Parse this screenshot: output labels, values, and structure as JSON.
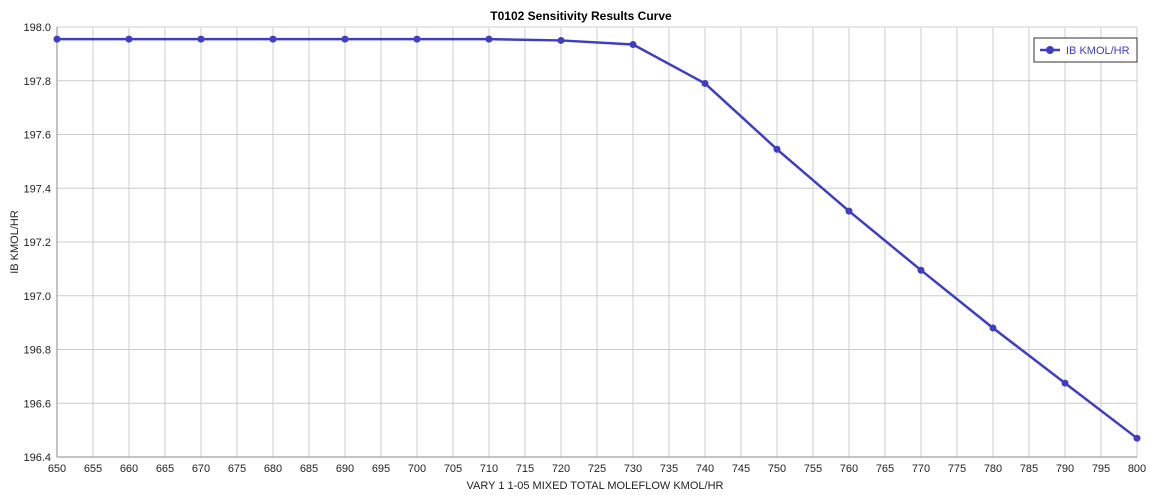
{
  "colors": {
    "series": "#3e3ec3",
    "grid": "#cccccc",
    "axis": "#888888",
    "background": "#ffffff",
    "legend_border": "#333333"
  },
  "chart_data": {
    "type": "line",
    "title": "T0102 Sensitivity Results Curve",
    "xlabel": "VARY  1 1-05 MIXED TOTAL MOLEFLOW KMOL/HR",
    "ylabel": "IB KMOL/HR",
    "xlim": [
      650,
      800
    ],
    "ylim": [
      196.4,
      198.0
    ],
    "x_ticks": [
      650,
      655,
      660,
      665,
      670,
      675,
      680,
      685,
      690,
      695,
      700,
      705,
      710,
      715,
      720,
      725,
      730,
      735,
      740,
      745,
      750,
      755,
      760,
      765,
      770,
      775,
      780,
      785,
      790,
      795,
      800
    ],
    "y_ticks": [
      196.4,
      196.6,
      196.8,
      197.0,
      197.2,
      197.4,
      197.6,
      197.8,
      198.0
    ],
    "y_tick_labels": [
      "196.4",
      "196.6",
      "196.8",
      "197.0",
      "197.2",
      "197.4",
      "197.6",
      "197.8",
      "198.0"
    ],
    "grid": true,
    "legend_position": "top-right",
    "series": [
      {
        "name": "IB KMOL/HR",
        "x": [
          650,
          660,
          670,
          680,
          690,
          700,
          710,
          720,
          730,
          740,
          750,
          760,
          770,
          780,
          790,
          800
        ],
        "values": [
          197.955,
          197.955,
          197.955,
          197.955,
          197.955,
          197.955,
          197.955,
          197.95,
          197.935,
          197.79,
          197.545,
          197.315,
          197.095,
          196.88,
          196.675,
          196.47
        ]
      }
    ]
  }
}
